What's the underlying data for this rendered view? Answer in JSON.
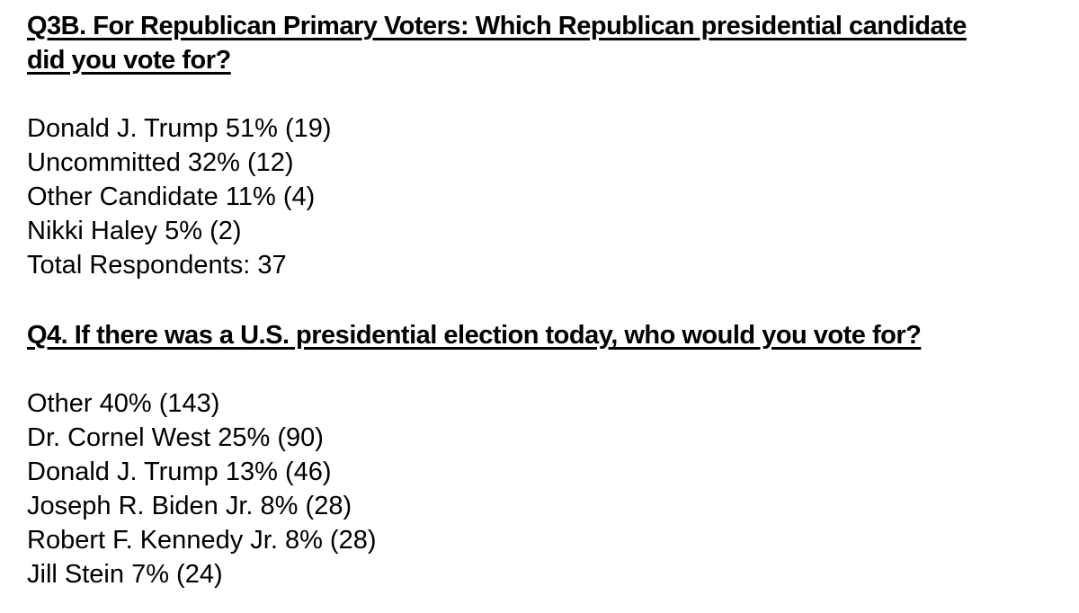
{
  "page": {
    "background_color": "#ffffff",
    "text_color": "#000000"
  },
  "sections": [
    {
      "id": "Q3B",
      "heading_lines": [
        "Q3B. For Republican Primary Voters: Which Republican presidential candidate",
        "did you vote for?"
      ],
      "results": [
        {
          "label": "Donald J. Trump",
          "percent": "51%",
          "count": "(19)"
        },
        {
          "label": "Uncommitted",
          "percent": "32%",
          "count": "(12)"
        },
        {
          "label": "Other Candidate",
          "percent": "11%",
          "count": "(4)"
        },
        {
          "label": "Nikki Haley",
          "percent": "5%",
          "count": "(2)"
        }
      ],
      "total_label": "Total Respondents:",
      "total_value": "37"
    },
    {
      "id": "Q4",
      "heading_lines": [
        "Q4. If there was a U.S. presidential election today, who would you vote for?"
      ],
      "results": [
        {
          "label": "Other",
          "percent": "40%",
          "count": "(143)"
        },
        {
          "label": "Dr. Cornel West",
          "percent": "25%",
          "count": "(90)"
        },
        {
          "label": "Donald J. Trump",
          "percent": "13%",
          "count": "(46)"
        },
        {
          "label": "Joseph R. Biden Jr.",
          "percent": "8%",
          "count": "(28)"
        },
        {
          "label": "Robert F. Kennedy Jr.",
          "percent": "8%",
          "count": "(28)"
        },
        {
          "label": "Jill Stein",
          "percent": "7%",
          "count": "(24)"
        }
      ]
    }
  ]
}
